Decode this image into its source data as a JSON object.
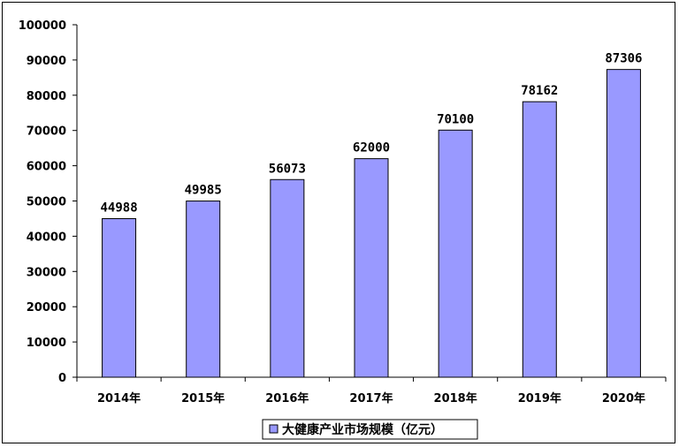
{
  "chart_data": {
    "type": "bar",
    "categories": [
      "2014年",
      "2015年",
      "2016年",
      "2017年",
      "2018年",
      "2019年",
      "2020年"
    ],
    "series": [
      {
        "name": "大健康产业市场规模（亿元）",
        "values": [
          44988,
          49985,
          56073,
          62000,
          70100,
          78162,
          87306
        ]
      }
    ],
    "ylim": [
      0,
      100000
    ],
    "yticks": [
      "0",
      "10000",
      "20000",
      "30000",
      "40000",
      "50000",
      "60000",
      "70000",
      "80000",
      "90000",
      "100000"
    ],
    "data_labels": [
      "44988",
      "49985",
      "56073",
      "62000",
      "70100",
      "78162",
      "87306"
    ],
    "grid": false,
    "legend_position": "bottom",
    "bar_color": "#9999ff"
  }
}
